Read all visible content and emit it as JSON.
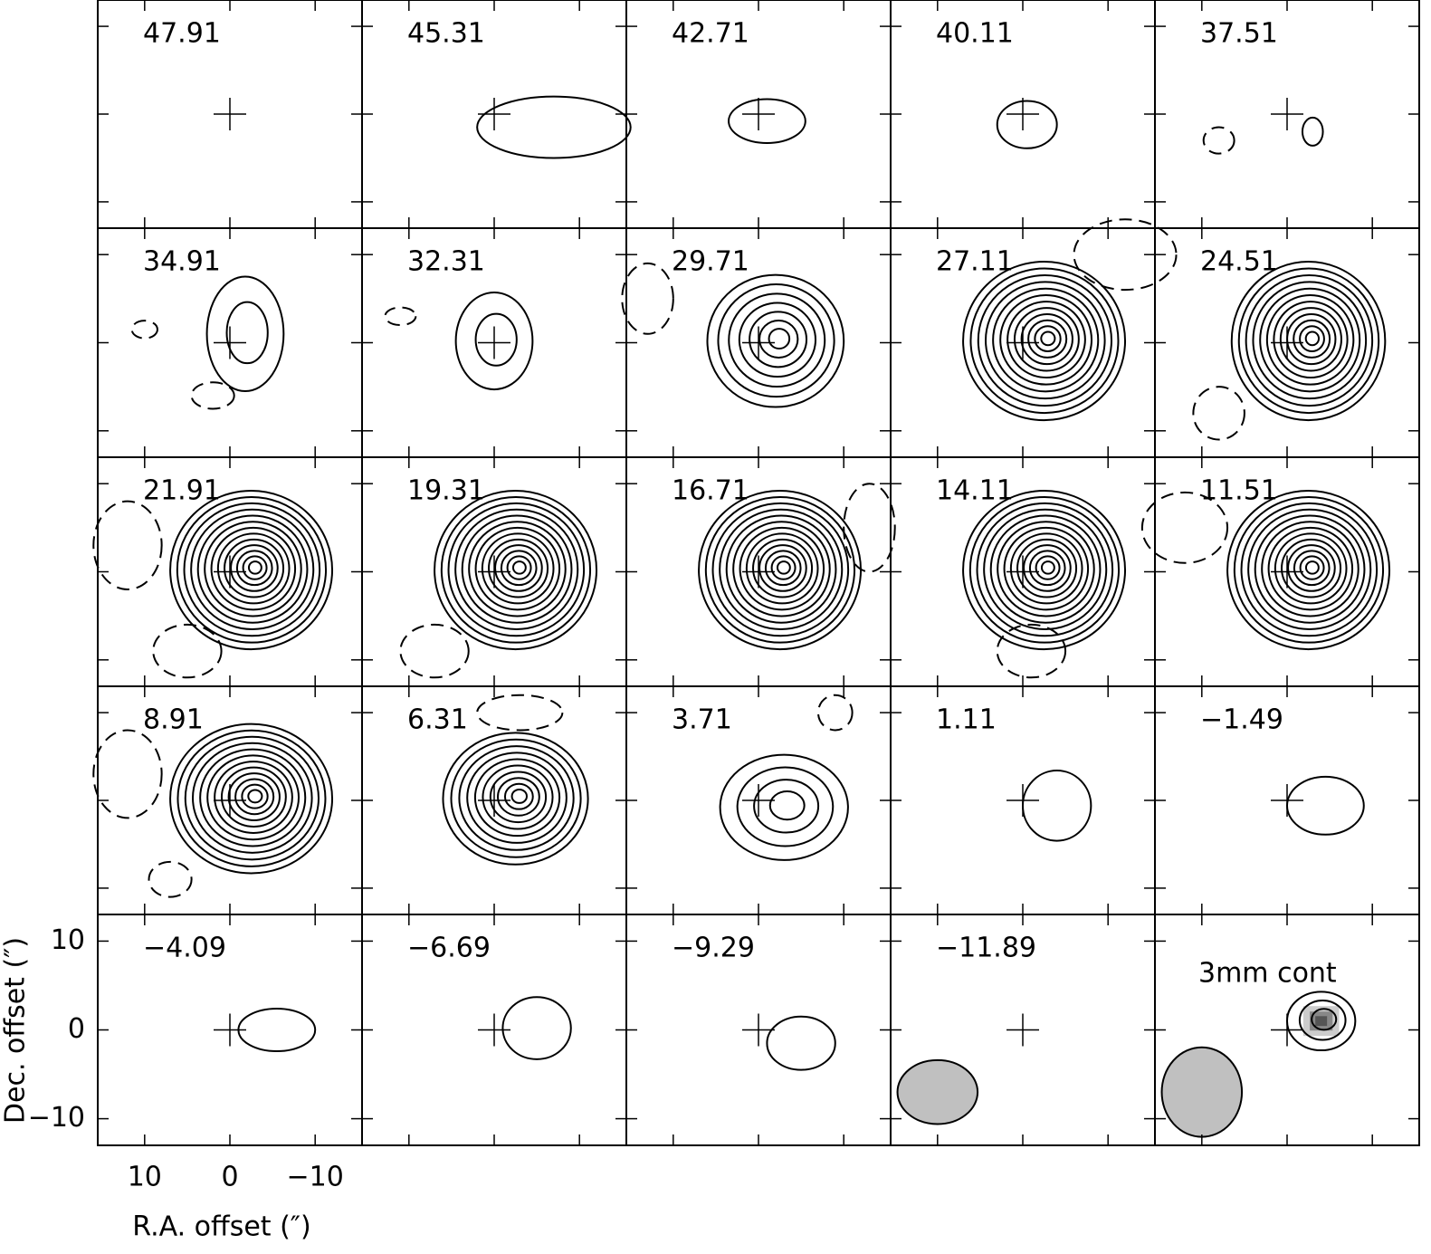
{
  "chart_data": {
    "type": "channel-map",
    "panels": [
      "47.91",
      "45.31",
      "42.71",
      "40.11",
      "37.51",
      "34.91",
      "32.31",
      "29.71",
      "27.11",
      "24.51",
      "21.91",
      "19.31",
      "16.71",
      "14.11",
      "11.51",
      "8.91",
      "6.31",
      "3.71",
      "1.11",
      "−1.49",
      "−4.09",
      "−6.69",
      "−9.29",
      "−11.89",
      "3mm cont"
    ],
    "xlabel": "R.A. offset (″)",
    "ylabel": "Dec. offset (″)",
    "xlim": [
      15.5,
      -15.5
    ],
    "ylim": [
      -13,
      13
    ],
    "xticks": [
      10,
      0,
      {
        "value": -10,
        "label": "−10"
      }
    ],
    "yticks": [
      {
        "value": -10,
        "label": "−10"
      },
      0,
      10
    ]
  }
}
